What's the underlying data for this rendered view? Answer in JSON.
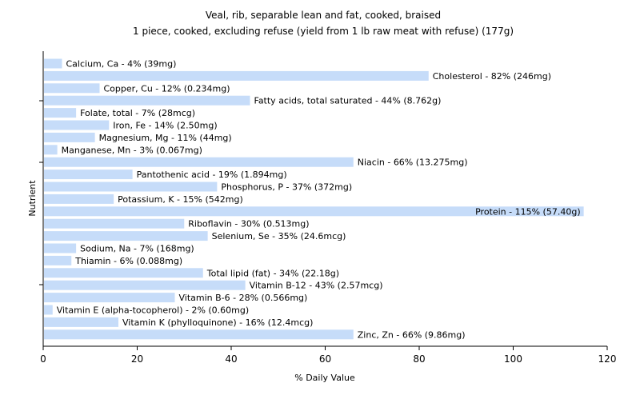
{
  "chart_data": {
    "type": "bar",
    "orientation": "horizontal",
    "title": "Veal, rib, separable lean and fat, cooked, braised",
    "subtitle": "1 piece, cooked, excluding refuse (yield from 1 lb raw meat with refuse) (177g)",
    "xlabel": "% Daily Value",
    "ylabel": "Nutrient",
    "xlim": [
      0,
      120
    ],
    "xticks": [
      0,
      20,
      40,
      60,
      80,
      100,
      120
    ],
    "grid": false,
    "bar_color": "#c6dcf9",
    "categories": [
      "Calcium, Ca",
      "Cholesterol",
      "Copper, Cu",
      "Fatty acids, total saturated",
      "Folate, total",
      "Iron, Fe",
      "Magnesium, Mg",
      "Manganese, Mn",
      "Niacin",
      "Pantothenic acid",
      "Phosphorus, P",
      "Potassium, K",
      "Protein",
      "Riboflavin",
      "Selenium, Se",
      "Sodium, Na",
      "Thiamin",
      "Total lipid (fat)",
      "Vitamin B-12",
      "Vitamin B-6",
      "Vitamin E (alpha-tocopherol)",
      "Vitamin K (phylloquinone)",
      "Zinc, Zn"
    ],
    "values": [
      4,
      82,
      12,
      44,
      7,
      14,
      11,
      3,
      66,
      19,
      37,
      15,
      115,
      30,
      35,
      7,
      6,
      34,
      43,
      28,
      2,
      16,
      66
    ],
    "labels": [
      "Calcium, Ca - 4% (39mg)",
      "Cholesterol - 82% (246mg)",
      "Copper, Cu - 12% (0.234mg)",
      "Fatty acids, total saturated - 44% (8.762g)",
      "Folate, total - 7% (28mcg)",
      "Iron, Fe - 14% (2.50mg)",
      "Magnesium, Mg - 11% (44mg)",
      "Manganese, Mn - 3% (0.067mg)",
      "Niacin - 66% (13.275mg)",
      "Pantothenic acid - 19% (1.894mg)",
      "Phosphorus, P - 37% (372mg)",
      "Potassium, K - 15% (542mg)",
      "Protein - 115% (57.40g)",
      "Riboflavin - 30% (0.513mg)",
      "Selenium, Se - 35% (24.6mcg)",
      "Sodium, Na - 7% (168mg)",
      "Thiamin - 6% (0.088mg)",
      "Total lipid (fat) - 34% (22.18g)",
      "Vitamin B-12 - 43% (2.57mcg)",
      "Vitamin B-6 - 28% (0.566mg)",
      "Vitamin E (alpha-tocopherol) - 2% (0.60mg)",
      "Vitamin K (phylloquinone) - 16% (12.4mcg)",
      "Zinc, Zn - 66% (9.86mg)"
    ]
  }
}
